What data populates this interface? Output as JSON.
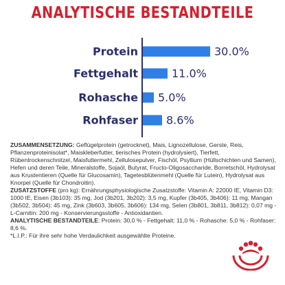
{
  "title": "ANALYTISCHE BESTANDTEILE",
  "chart_data": {
    "type": "bar",
    "orientation": "horizontal",
    "categories": [
      "Protein",
      "Fettgehalt",
      "Rohasche",
      "Rohfaser"
    ],
    "values": [
      30.0,
      11.0,
      5.0,
      8.6
    ],
    "value_labels": [
      "30.0%",
      "11.0%",
      "5.0%",
      "8.6%"
    ],
    "unit": "%",
    "xlim": [
      0,
      30
    ],
    "grid": false,
    "legend": "none",
    "bar_color": "#2f7fe6",
    "label_color": "#2b2f6b"
  },
  "composition": {
    "zusammensetzung_head": "ZUSAMMENSETZUNG:",
    "zusammensetzung_text": " Geflügelprotein (getrocknet), Mais, Lignozellulose, Gerste, Reis, Pflanzenproteinisolat*, Maiskleberfutter, tierisches Protein (hydrolysiert), Tierfett, Rübentrockenschnitzel, Maisfuttermehl, Zellulosepulver, Fischöl, Psyllium (Hüllschichten und Samen), Hefen und deren Teile, Mineralstoffe, Sojaöl, Butyrat, Fructo-Oligosaccharide, Borretschöl, Hydrolysat aus Krustentieren (Quelle für Glucosamin), Tagetesblütenmehl (Quelle für Lutein), Hydrolysat aus Knorpel (Quelle für Chondroitin).",
    "zusatzstoffe_head": "ZUSATZSTOFFE",
    "zusatzstoffe_text": " (pro kg): Ernährungsphysiologische Zusatzstoffe: Vitamin A: 22000 IE, Vitamin D3: 1000 IE, Eisen (3b103): 35 mg, Jod (3b201, 3b202): 3,5 mg, Kupfer (3b405, 3b406): 11 mg, Mangan (3b502, 3b504): 45 mg, Zink (3b603, 3b605, 3b606): 134 mg, Selen (3b801, 3b811, 3b812): 0,07 mg - L-Carnitin: 200 mg - Konservierungsstoffe - Antioxidantien.",
    "analytische_head": "ANALYTISCHE BESTANDTEILE",
    "analytische_text": ": Protein: 30,0 % - Fettgehalt: 11,0 % - Rohasche: 5,0 % - Rohfaser: 8,6 %.",
    "footnote": "*L.I.P.: Für ihre sehr hohe Verdaulichkeit ausgewählte Proteine."
  },
  "brand": {
    "logo_icon": "royal-canin-crown-logo",
    "logo_color": "#d6202f"
  }
}
